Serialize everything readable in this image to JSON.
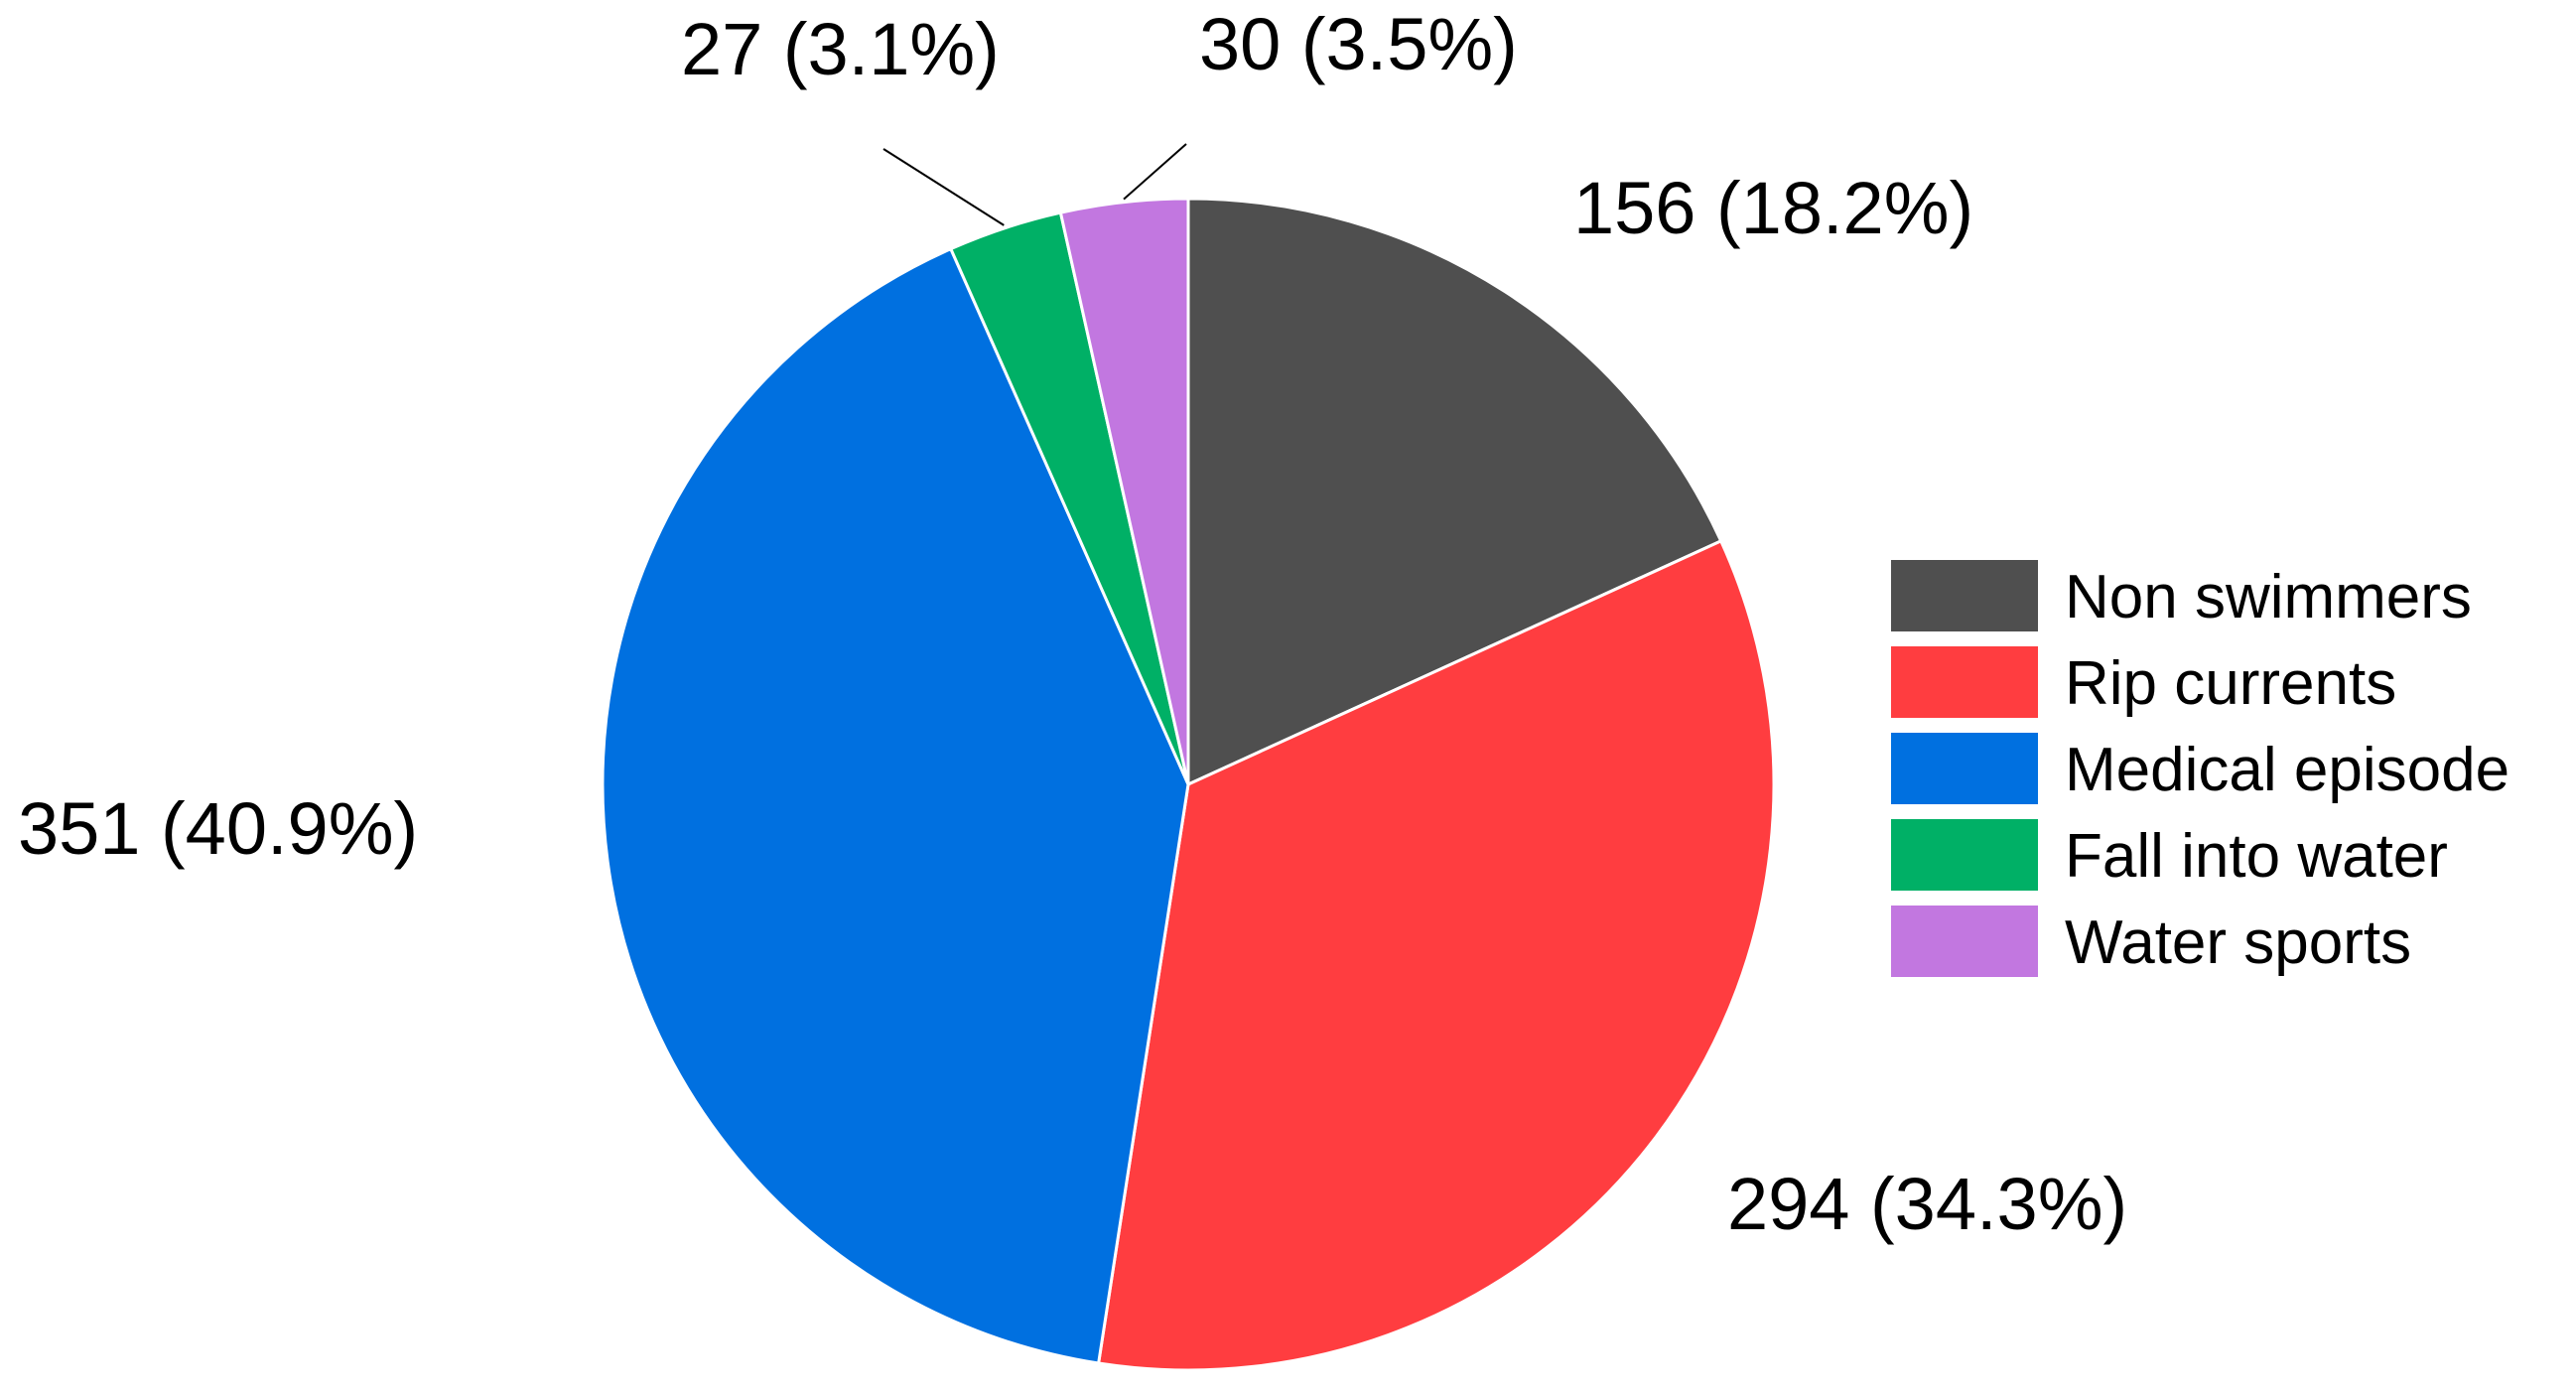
{
  "chart_data": {
    "type": "pie",
    "title": "",
    "start_angle_deg": 0,
    "direction": "clockwise",
    "legend_position": "right",
    "slices": [
      {
        "name": "Non swimmers",
        "value": 156,
        "label": "156 (18.2%)",
        "color": "#4f4f4f"
      },
      {
        "name": "Rip currents",
        "value": 294,
        "label": "294 (34.3%)",
        "color": "#ff3d40"
      },
      {
        "name": "Medical episode",
        "value": 351,
        "label": "351 (40.9%)",
        "color": "#0070e0"
      },
      {
        "name": "Fall into water",
        "value": 27,
        "label": "27 (3.1%)",
        "color": "#00b066"
      },
      {
        "name": "Water sports",
        "value": 30,
        "label": "30 (3.5%)",
        "color": "#c277e0"
      }
    ]
  }
}
